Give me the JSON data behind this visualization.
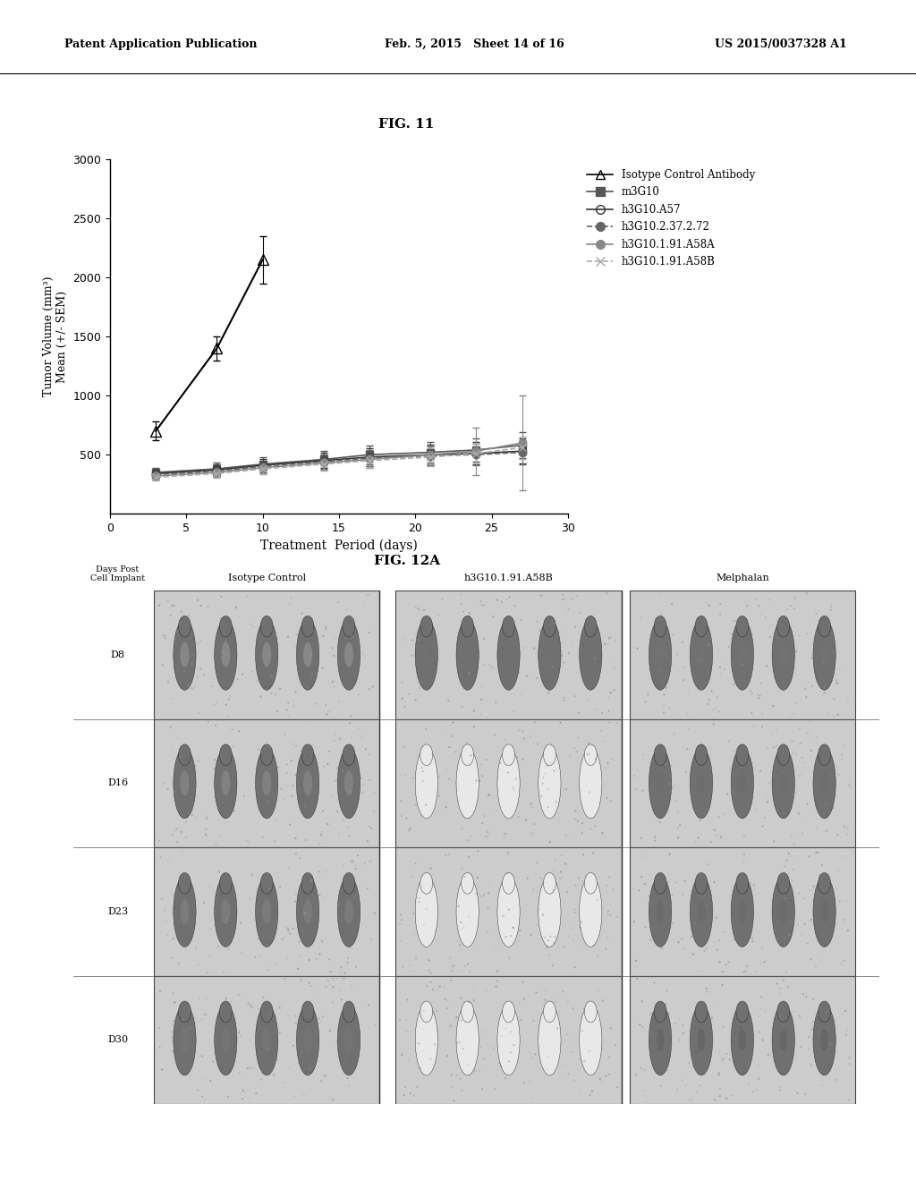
{
  "header_left": "Patent Application Publication",
  "header_mid": "Feb. 5, 2015   Sheet 14 of 16",
  "header_right": "US 2015/0037328 A1",
  "fig11_title": "FIG. 11",
  "fig12a_title": "FIG. 12A",
  "xlabel": "Treatment  Period (days)",
  "ylabel": "Tumor Volume (mm³)\nMean (+/- SEM)",
  "xlim": [
    0,
    30
  ],
  "ylim": [
    0,
    3000
  ],
  "yticks": [
    500,
    1000,
    1500,
    2000,
    2500,
    3000
  ],
  "xticks": [
    0,
    5,
    10,
    15,
    20,
    25,
    30
  ],
  "series": [
    {
      "label": "Isotype Control Antibody",
      "x": [
        3,
        7,
        10
      ],
      "y": [
        700,
        1400,
        2150
      ],
      "yerr": [
        80,
        100,
        200
      ],
      "color": "black",
      "linestyle": "-",
      "marker": "^",
      "markersize": 8,
      "linewidth": 1.5,
      "fillstyle": "none"
    },
    {
      "label": "m3G10",
      "x": [
        3,
        7,
        10,
        14,
        17,
        21,
        24,
        27
      ],
      "y": [
        350,
        380,
        420,
        460,
        500,
        520,
        540,
        580
      ],
      "yerr": [
        40,
        50,
        60,
        70,
        80,
        90,
        100,
        110
      ],
      "color": "#555555",
      "linestyle": "-",
      "marker": "s",
      "markersize": 6,
      "linewidth": 1.2,
      "fillstyle": "full"
    },
    {
      "label": "h3G10.A57",
      "x": [
        3,
        7,
        10,
        14,
        17,
        21,
        24,
        27
      ],
      "y": [
        340,
        370,
        410,
        450,
        480,
        500,
        510,
        530
      ],
      "yerr": [
        35,
        45,
        55,
        65,
        75,
        85,
        95,
        105
      ],
      "color": "#333333",
      "linestyle": "-",
      "marker": "o",
      "markersize": 6,
      "linewidth": 1.2,
      "fillstyle": "none"
    },
    {
      "label": "h3G10.2.37.2.72",
      "x": [
        3,
        7,
        10,
        14,
        17,
        21,
        24,
        27
      ],
      "y": [
        330,
        360,
        400,
        440,
        470,
        490,
        500,
        520
      ],
      "yerr": [
        30,
        40,
        50,
        60,
        70,
        80,
        90,
        100
      ],
      "color": "#666666",
      "linestyle": "--",
      "marker": "o",
      "markersize": 6,
      "linewidth": 1.2,
      "fillstyle": "full"
    },
    {
      "label": "h3G10.1.91.A58A",
      "x": [
        3,
        7,
        10,
        14,
        17,
        21,
        24,
        27
      ],
      "y": [
        320,
        350,
        390,
        430,
        460,
        500,
        530,
        600
      ],
      "yerr": [
        30,
        40,
        50,
        60,
        70,
        80,
        200,
        400
      ],
      "color": "#888888",
      "linestyle": "-",
      "marker": "o",
      "markersize": 6,
      "linewidth": 1.2,
      "fillstyle": "full"
    },
    {
      "label": "h3G10.1.91.A58B",
      "x": [
        3,
        7,
        10,
        14,
        17,
        21,
        24,
        27
      ],
      "y": [
        310,
        340,
        380,
        420,
        450,
        480,
        510,
        560
      ],
      "yerr": [
        25,
        35,
        45,
        55,
        65,
        75,
        85,
        95
      ],
      "color": "#aaaaaa",
      "linestyle": "--",
      "marker": "x",
      "markersize": 6,
      "linewidth": 1.2,
      "fillstyle": "full"
    }
  ],
  "bg_color": "white",
  "fig12a_col_labels": [
    "Isotype Control",
    "h3G10.1.91.A58B",
    "Melphalan"
  ],
  "fig12a_row_labels": [
    "D8",
    "D16",
    "D23",
    "D30"
  ]
}
